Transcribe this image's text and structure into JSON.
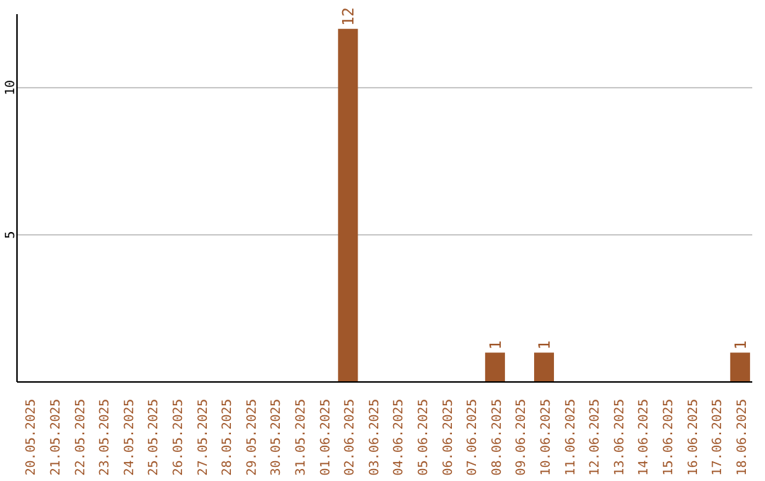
{
  "chart_data": {
    "type": "bar",
    "categories": [
      "20.05.2025",
      "21.05.2025",
      "22.05.2025",
      "23.05.2025",
      "24.05.2025",
      "25.05.2025",
      "26.05.2025",
      "27.05.2025",
      "28.05.2025",
      "29.05.2025",
      "30.05.2025",
      "31.05.2025",
      "01.06.2025",
      "02.06.2025",
      "03.06.2025",
      "04.06.2025",
      "05.06.2025",
      "06.06.2025",
      "07.06.2025",
      "08.06.2025",
      "09.06.2025",
      "10.06.2025",
      "11.06.2025",
      "12.06.2025",
      "13.06.2025",
      "14.06.2025",
      "15.06.2025",
      "16.06.2025",
      "17.06.2025",
      "18.06.2025"
    ],
    "values": [
      0,
      0,
      0,
      0,
      0,
      0,
      0,
      0,
      0,
      0,
      0,
      0,
      0,
      12,
      0,
      0,
      0,
      0,
      0,
      1,
      0,
      1,
      0,
      0,
      0,
      0,
      0,
      0,
      0,
      1
    ],
    "value_labels": [
      null,
      null,
      null,
      null,
      null,
      null,
      null,
      null,
      null,
      null,
      null,
      null,
      null,
      "12",
      null,
      null,
      null,
      null,
      null,
      "1",
      null,
      "1",
      null,
      null,
      null,
      null,
      null,
      null,
      null,
      "1"
    ],
    "color": "#a0572a",
    "ylim": [
      0,
      12.5
    ],
    "yticks": [
      5,
      10
    ],
    "grid": "y"
  }
}
